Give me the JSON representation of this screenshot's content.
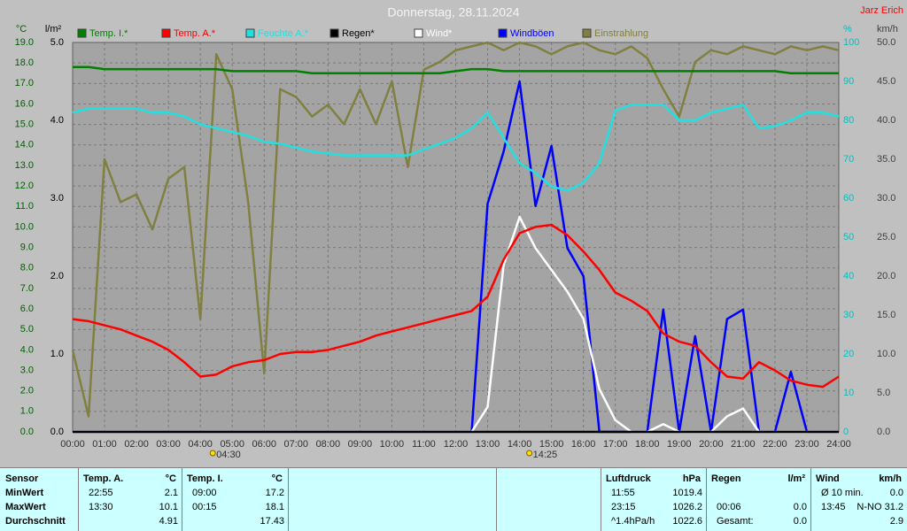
{
  "chart_data": {
    "type": "line",
    "title": "Donnerstag, 28.11.2024",
    "credit": "Jarz Erich",
    "x": [
      0,
      0.5,
      1,
      1.5,
      2,
      2.5,
      3,
      3.5,
      4,
      4.5,
      5,
      5.5,
      6,
      6.5,
      7,
      7.5,
      8,
      8.5,
      9,
      9.5,
      10,
      10.5,
      11,
      11.5,
      12,
      12.5,
      13,
      13.5,
      14,
      14.5,
      15,
      15.5,
      16,
      16.5,
      17,
      17.5,
      18,
      18.5,
      19,
      19.5,
      20,
      20.5,
      21,
      21.5,
      22,
      22.5,
      23,
      23.5,
      24
    ],
    "xlim": [
      0,
      24
    ],
    "xticks": [
      {
        "value": 0,
        "label": "00:00"
      },
      {
        "value": 1,
        "label": "01:00"
      },
      {
        "value": 2,
        "label": "02:00"
      },
      {
        "value": 3,
        "label": "03:00"
      },
      {
        "value": 4,
        "label": "04:00"
      },
      {
        "value": 5,
        "label": "05:00"
      },
      {
        "value": 6,
        "label": "06:00"
      },
      {
        "value": 7,
        "label": "07:00"
      },
      {
        "value": 8,
        "label": "08:00"
      },
      {
        "value": 9,
        "label": "09:00"
      },
      {
        "value": 10,
        "label": "10:00"
      },
      {
        "value": 11,
        "label": "11:00"
      },
      {
        "value": 12,
        "label": "12:00"
      },
      {
        "value": 13,
        "label": "13:00"
      },
      {
        "value": 14,
        "label": "14:00"
      },
      {
        "value": 15,
        "label": "15:00"
      },
      {
        "value": 16,
        "label": "16:00"
      },
      {
        "value": 17,
        "label": "17:00"
      },
      {
        "value": 18,
        "label": "18:00"
      },
      {
        "value": 19,
        "label": "19:00"
      },
      {
        "value": 20,
        "label": "20:00"
      },
      {
        "value": 21,
        "label": "21:00"
      },
      {
        "value": 22,
        "label": "22:00"
      },
      {
        "value": 23,
        "label": "23:00"
      },
      {
        "value": 24,
        "label": "24:00"
      }
    ],
    "ylabel": "°C",
    "ylim": [
      0,
      19
    ],
    "yticks": [
      {
        "value": 0,
        "label": "0.0"
      },
      {
        "value": 1,
        "label": "1.0"
      },
      {
        "value": 2,
        "label": "2.0"
      },
      {
        "value": 3,
        "label": "3.0"
      },
      {
        "value": 4,
        "label": "4.0"
      },
      {
        "value": 5,
        "label": "5.0"
      },
      {
        "value": 6,
        "label": "6.0"
      },
      {
        "value": 7,
        "label": "7.0"
      },
      {
        "value": 8,
        "label": "8.0"
      },
      {
        "value": 9,
        "label": "9.0"
      },
      {
        "value": 10,
        "label": "10.0"
      },
      {
        "value": 11,
        "label": "11.0"
      },
      {
        "value": 12,
        "label": "12.0"
      },
      {
        "value": 13,
        "label": "13.0"
      },
      {
        "value": 14,
        "label": "14.0"
      },
      {
        "value": 15,
        "label": "15.0"
      },
      {
        "value": 16,
        "label": "16.0"
      },
      {
        "value": 17,
        "label": "17.0"
      },
      {
        "value": 18,
        "label": "18.0"
      },
      {
        "value": 19,
        "label": "19.0"
      }
    ],
    "y2label": "l/m²",
    "y2lim": [
      0,
      5
    ],
    "y2ticks": [
      {
        "value": 0,
        "label": "0.0"
      },
      {
        "value": 1,
        "label": "1.0"
      },
      {
        "value": 2,
        "label": "2.0"
      },
      {
        "value": 3,
        "label": "3.0"
      },
      {
        "value": 4,
        "label": "4.0"
      },
      {
        "value": 5,
        "label": "5.0"
      }
    ],
    "y3label": "%",
    "y3lim": [
      0,
      100
    ],
    "y3ticks": [
      0,
      10,
      20,
      30,
      40,
      50,
      60,
      70,
      80,
      90,
      100
    ],
    "y4label": "km/h",
    "y4lim": [
      0,
      50
    ],
    "y4ticks": [
      {
        "value": 0,
        "label": "0.0"
      },
      {
        "value": 5,
        "label": "5.0"
      },
      {
        "value": 10,
        "label": "10.0"
      },
      {
        "value": 15,
        "label": "15.0"
      },
      {
        "value": 20,
        "label": "20.0"
      },
      {
        "value": 25,
        "label": "25.0"
      },
      {
        "value": 30,
        "label": "30.0"
      },
      {
        "value": 35,
        "label": "35.0"
      },
      {
        "value": 40,
        "label": "40.0"
      },
      {
        "value": 45,
        "label": "45.0"
      },
      {
        "value": 50,
        "label": "50.0"
      }
    ],
    "grid": true,
    "series": [
      {
        "name": "Temp. I.*",
        "color": "#008000",
        "axis": "y",
        "values": [
          17.8,
          17.8,
          17.7,
          17.7,
          17.7,
          17.7,
          17.7,
          17.7,
          17.7,
          17.7,
          17.6,
          17.6,
          17.6,
          17.6,
          17.6,
          17.5,
          17.5,
          17.5,
          17.5,
          17.5,
          17.5,
          17.5,
          17.5,
          17.5,
          17.6,
          17.7,
          17.7,
          17.6,
          17.6,
          17.6,
          17.6,
          17.6,
          17.6,
          17.6,
          17.6,
          17.6,
          17.6,
          17.6,
          17.6,
          17.6,
          17.6,
          17.6,
          17.6,
          17.6,
          17.6,
          17.5,
          17.5,
          17.5,
          17.5
        ]
      },
      {
        "name": "Temp. A.*",
        "color": "#ff0000",
        "axis": "y",
        "values": [
          5.5,
          5.4,
          5.2,
          5.0,
          4.7,
          4.4,
          4.0,
          3.4,
          2.7,
          2.8,
          3.2,
          3.4,
          3.5,
          3.8,
          3.9,
          3.9,
          4.0,
          4.2,
          4.4,
          4.7,
          4.9,
          5.1,
          5.3,
          5.5,
          5.7,
          5.9,
          6.6,
          8.4,
          9.7,
          10.0,
          10.1,
          9.6,
          8.8,
          7.9,
          6.8,
          6.4,
          5.9,
          4.8,
          4.4,
          4.2,
          3.4,
          2.7,
          2.6,
          3.4,
          3.0,
          2.5,
          2.3,
          2.2,
          2.7
        ]
      },
      {
        "name": "Feuchte A.*",
        "color": "#20e0e0",
        "axis": "y3",
        "values": [
          82,
          83,
          83,
          83,
          83,
          82,
          82,
          81,
          79,
          78,
          77,
          76,
          74.5,
          74,
          73,
          72,
          71.5,
          71,
          71,
          71,
          71,
          71,
          72.5,
          74,
          75.5,
          78,
          82,
          75.5,
          69,
          66.5,
          63,
          62,
          64,
          69,
          82.5,
          84,
          84,
          84,
          80,
          80,
          82,
          83,
          84,
          78,
          78.5,
          80,
          82,
          82,
          81
        ]
      },
      {
        "name": "Regen*",
        "color": "#000000",
        "axis": "y2",
        "values": [
          0,
          0,
          0,
          0,
          0,
          0,
          0,
          0,
          0,
          0,
          0,
          0,
          0,
          0,
          0,
          0,
          0,
          0,
          0,
          0,
          0,
          0,
          0,
          0,
          0,
          0,
          0,
          0,
          0,
          0,
          0,
          0,
          0,
          0,
          0,
          0,
          0,
          0,
          0,
          0,
          0,
          0,
          0,
          0,
          0,
          0,
          0,
          0,
          0
        ]
      },
      {
        "name": "Wind*",
        "color": "#ffffff",
        "axis": "y4",
        "values": [
          0,
          0,
          0,
          0,
          0,
          0,
          0,
          0,
          0,
          0,
          0,
          0,
          0,
          0,
          0,
          0,
          0,
          0,
          0,
          0,
          0,
          0,
          0,
          0,
          0,
          0,
          3.2,
          21.4,
          27.6,
          23.6,
          20.8,
          18,
          14.5,
          5.5,
          1.5,
          0,
          0,
          1,
          0,
          0,
          0,
          2,
          3,
          0,
          0,
          0,
          0,
          0,
          0
        ]
      },
      {
        "name": "Windböen",
        "color": "#0000ff",
        "axis": "y4",
        "values": [
          0,
          0,
          0,
          0,
          0,
          0,
          0,
          0,
          0,
          0,
          0,
          0,
          0,
          0,
          0,
          0,
          0,
          0,
          0,
          0,
          0,
          0,
          0,
          0,
          0,
          0,
          29.3,
          36,
          45,
          29,
          36.7,
          23.6,
          20,
          0,
          0,
          0,
          0,
          15.7,
          0,
          12.3,
          0,
          14.5,
          15.7,
          0,
          0,
          7.7,
          0,
          0,
          0
        ]
      },
      {
        "name": "Einstrahlung",
        "color": "#808040",
        "axis": "y3",
        "values": [
          21,
          4,
          70,
          59,
          61,
          52,
          65,
          68,
          29,
          97,
          88,
          59,
          15,
          88,
          86,
          81,
          84,
          79,
          88,
          79,
          90,
          68,
          93,
          95,
          98,
          99,
          100,
          98,
          100,
          99,
          97,
          99,
          100,
          98,
          97,
          99,
          96,
          88,
          81,
          95,
          98,
          97,
          99,
          98,
          97,
          99,
          98,
          99,
          98
        ]
      }
    ],
    "annotations": [
      {
        "x": 4.5,
        "label": "04:30"
      },
      {
        "x": 14.4167,
        "label": "14:25"
      }
    ]
  },
  "table": {
    "header": "Sensor",
    "row_labels": [
      "MinWert",
      "MaxWert",
      "Durchschnitt"
    ],
    "groups": [
      {
        "name": "Temp. A.",
        "unit": "°C",
        "cells": [
          [
            "22:55",
            "2.1"
          ],
          [
            "13:30",
            "10.1"
          ],
          [
            null,
            "4.91"
          ]
        ]
      },
      {
        "name": "Temp. I.",
        "unit": "°C",
        "cells": [
          [
            "09:00",
            "17.2"
          ],
          [
            "00:15",
            "18.1"
          ],
          [
            null,
            "17.43"
          ]
        ]
      },
      {
        "name": "Luftdruck",
        "unit": "hPa",
        "cells": [
          [
            "11:55",
            "1019.4"
          ],
          [
            "23:15",
            "1026.2"
          ],
          [
            "^1.4hPa/h",
            "1022.6"
          ]
        ]
      },
      {
        "name": "Regen",
        "unit": "l/m²",
        "cells": [
          [
            null,
            null
          ],
          [
            "00:06",
            "0.0"
          ],
          [
            "Gesamt:",
            "0.0"
          ]
        ]
      },
      {
        "name": "Wind",
        "unit": "km/h",
        "cells": [
          [
            "Ø 10 min.",
            "0.0"
          ],
          [
            "13:45",
            "N-NO 31.2"
          ],
          [
            null,
            "2.9"
          ]
        ]
      }
    ]
  }
}
